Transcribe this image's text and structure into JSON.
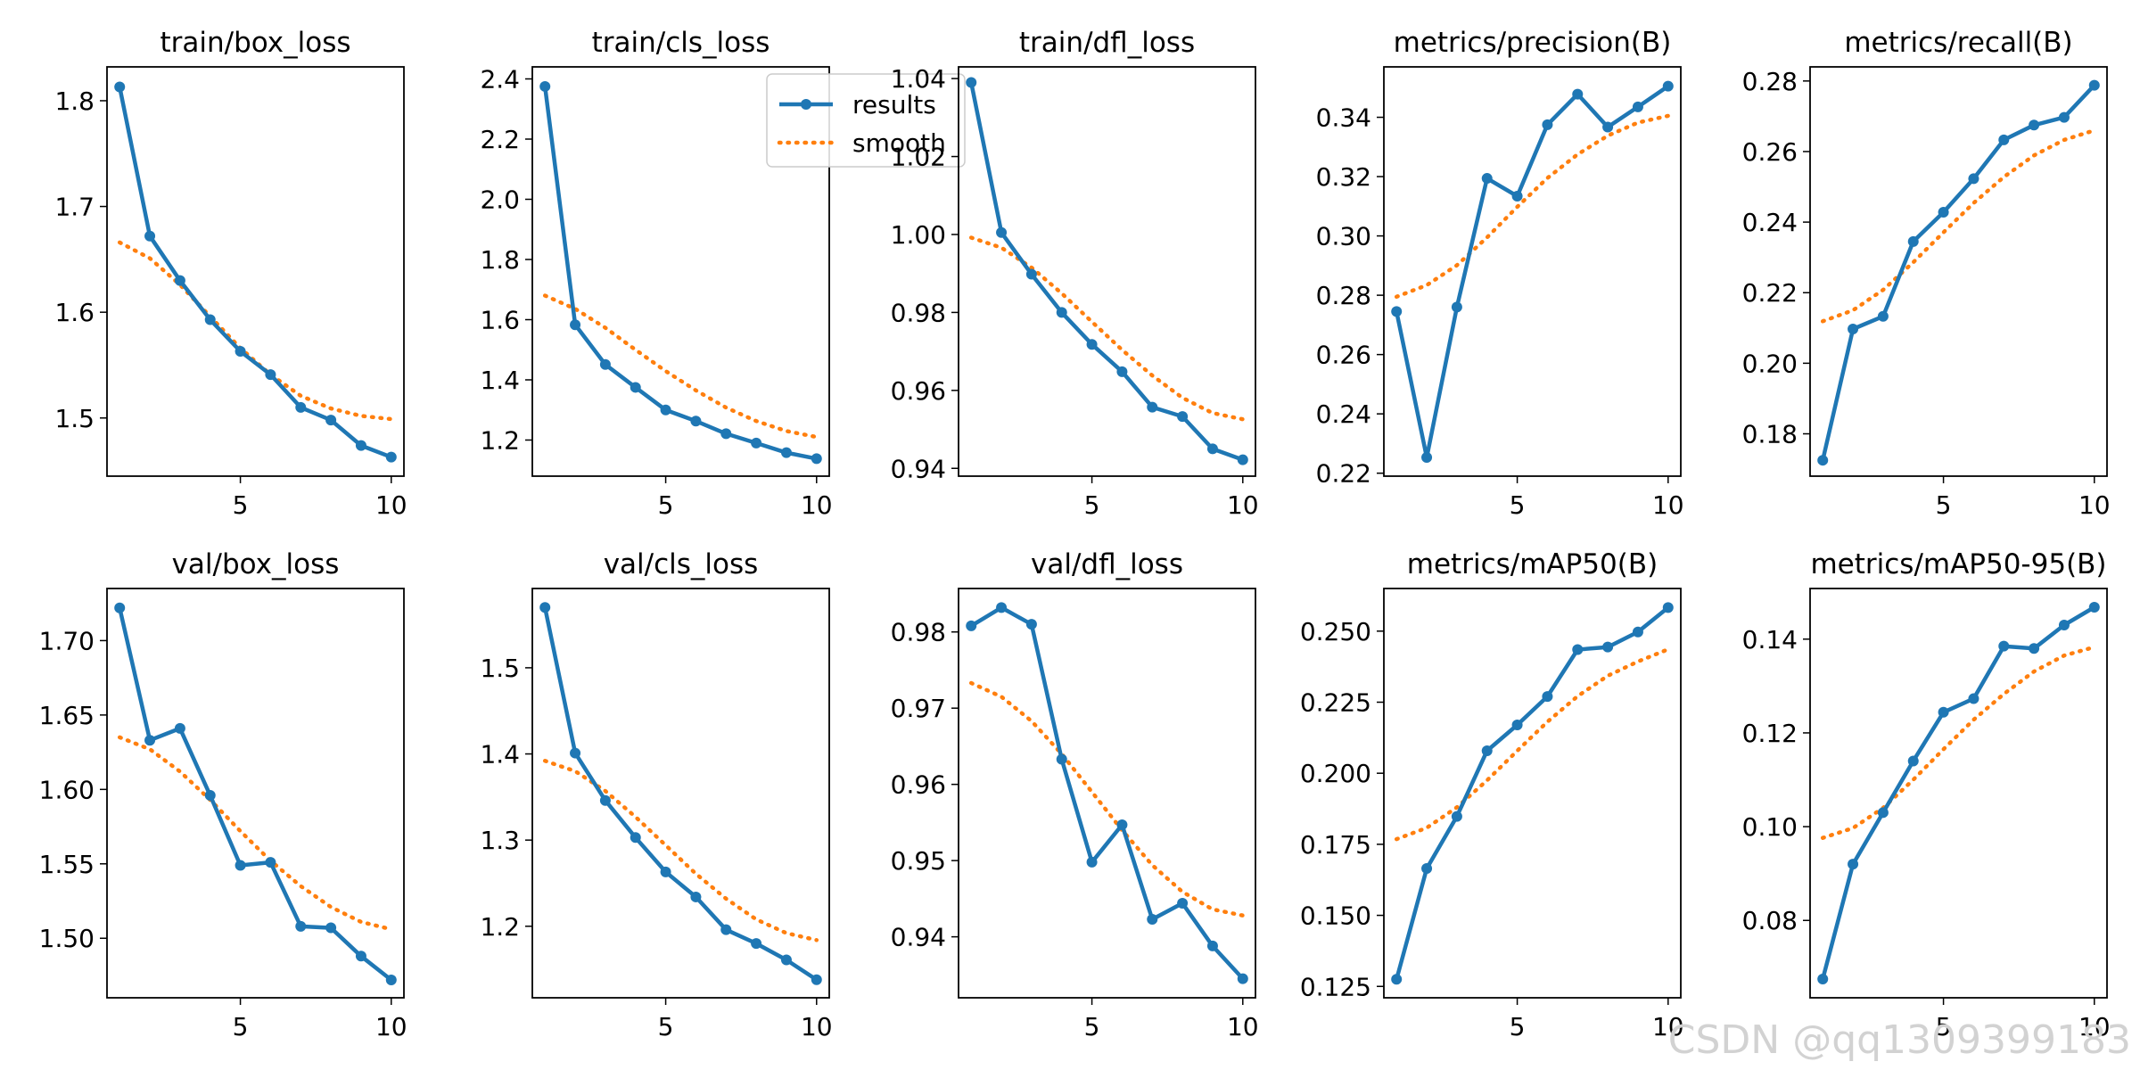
{
  "figure": {
    "legend": {
      "results_label": "results",
      "smooth_label": "smooth",
      "placement": "upper-right of train/cls_loss panel"
    },
    "colors": {
      "results": "#1f77b4",
      "smooth": "#ff7f0e",
      "axes": "#000000",
      "background": "#ffffff"
    }
  },
  "watermark": "CSDN @qq1309399183",
  "chart_data": [
    {
      "type": "line",
      "title": "train/box_loss",
      "x": [
        1,
        2,
        3,
        4,
        5,
        6,
        7,
        8,
        9,
        10
      ],
      "series": [
        {
          "name": "results",
          "values": [
            1.813,
            1.672,
            1.63,
            1.593,
            1.563,
            1.541,
            1.51,
            1.498,
            1.474,
            1.463
          ]
        },
        {
          "name": "smooth",
          "values": [
            1.666,
            1.651,
            1.626,
            1.596,
            1.566,
            1.541,
            1.521,
            1.509,
            1.502,
            1.499
          ]
        }
      ],
      "xlim": [
        0.58,
        10.42
      ],
      "ylim": [
        1.445,
        1.832
      ],
      "xticks": [
        5,
        10
      ],
      "yticks": [
        1.5,
        1.6,
        1.7,
        1.8
      ],
      "xticklabels": [
        "5",
        "10"
      ],
      "yticklabels": [
        "1.5",
        "1.6",
        "1.7",
        "1.8"
      ]
    },
    {
      "type": "line",
      "title": "train/cls_loss",
      "x": [
        1,
        2,
        3,
        4,
        5,
        6,
        7,
        8,
        9,
        10
      ],
      "series": [
        {
          "name": "results",
          "values": [
            2.375,
            1.583,
            1.451,
            1.375,
            1.3,
            1.263,
            1.221,
            1.19,
            1.158,
            1.138
          ]
        },
        {
          "name": "smooth",
          "values": [
            1.68,
            1.636,
            1.573,
            1.5,
            1.429,
            1.365,
            1.308,
            1.263,
            1.23,
            1.21
          ]
        }
      ],
      "xlim": [
        0.58,
        10.42
      ],
      "ylim": [
        1.08,
        2.44
      ],
      "xticks": [
        5,
        10
      ],
      "yticks": [
        1.2,
        1.4,
        1.6,
        1.8,
        2.0,
        2.2,
        2.4
      ],
      "xticklabels": [
        "5",
        "10"
      ],
      "yticklabels": [
        "1.2",
        "1.4",
        "1.6",
        "1.8",
        "2.0",
        "2.2",
        "2.4"
      ],
      "legend": true
    },
    {
      "type": "line",
      "title": "train/dfl_loss",
      "x": [
        1,
        2,
        3,
        4,
        5,
        6,
        7,
        8,
        9,
        10
      ],
      "series": [
        {
          "name": "results",
          "values": [
            1.039,
            1.0005,
            0.9898,
            0.98,
            0.9718,
            0.9648,
            0.9557,
            0.9533,
            0.945,
            0.9422
          ]
        },
        {
          "name": "smooth",
          "values": [
            0.9992,
            0.9966,
            0.9915,
            0.9849,
            0.9776,
            0.9704,
            0.9638,
            0.9581,
            0.9542,
            0.9526
          ]
        }
      ],
      "xlim": [
        0.58,
        10.42
      ],
      "ylim": [
        0.938,
        1.043
      ],
      "xticks": [
        5,
        10
      ],
      "yticks": [
        0.94,
        0.96,
        0.98,
        1.0,
        1.02,
        1.04
      ],
      "xticklabels": [
        "5",
        "10"
      ],
      "yticklabels": [
        "0.94",
        "0.96",
        "0.98",
        "1.00",
        "1.02",
        "1.04"
      ]
    },
    {
      "type": "line",
      "title": "metrics/precision(B)",
      "x": [
        1,
        2,
        3,
        4,
        5,
        6,
        7,
        8,
        9,
        10
      ],
      "series": [
        {
          "name": "results",
          "values": [
            0.2745,
            0.2253,
            0.276,
            0.3194,
            0.3134,
            0.3375,
            0.3478,
            0.3367,
            0.3435,
            0.3505
          ]
        },
        {
          "name": "smooth",
          "values": [
            0.2795,
            0.2834,
            0.2901,
            0.2995,
            0.3098,
            0.3195,
            0.3275,
            0.3338,
            0.3382,
            0.3405
          ]
        }
      ],
      "xlim": [
        0.58,
        10.42
      ],
      "ylim": [
        0.219,
        0.357
      ],
      "xticks": [
        5,
        10
      ],
      "yticks": [
        0.22,
        0.24,
        0.26,
        0.28,
        0.3,
        0.32,
        0.34
      ],
      "xticklabels": [
        "5",
        "10"
      ],
      "yticklabels": [
        "0.22",
        "0.24",
        "0.26",
        "0.28",
        "0.30",
        "0.32",
        "0.34"
      ]
    },
    {
      "type": "line",
      "title": "metrics/recall(B)",
      "x": [
        1,
        2,
        3,
        4,
        5,
        6,
        7,
        8,
        9,
        10
      ],
      "series": [
        {
          "name": "results",
          "values": [
            0.1725,
            0.2097,
            0.2133,
            0.2345,
            0.2428,
            0.2523,
            0.2633,
            0.2675,
            0.2697,
            0.2788
          ]
        },
        {
          "name": "smooth",
          "values": [
            0.2119,
            0.215,
            0.2208,
            0.2286,
            0.2371,
            0.2454,
            0.2528,
            0.2589,
            0.2633,
            0.266
          ]
        }
      ],
      "xlim": [
        0.58,
        10.42
      ],
      "ylim": [
        0.168,
        0.284
      ],
      "xticks": [
        5,
        10
      ],
      "yticks": [
        0.18,
        0.2,
        0.22,
        0.24,
        0.26,
        0.28
      ],
      "xticklabels": [
        "5",
        "10"
      ],
      "yticklabels": [
        "0.18",
        "0.20",
        "0.22",
        "0.24",
        "0.26",
        "0.28"
      ]
    },
    {
      "type": "line",
      "title": "val/box_loss",
      "x": [
        1,
        2,
        3,
        4,
        5,
        6,
        7,
        8,
        9,
        10
      ],
      "series": [
        {
          "name": "results",
          "values": [
            1.722,
            1.633,
            1.641,
            1.596,
            1.549,
            1.551,
            1.508,
            1.507,
            1.488,
            1.472
          ]
        },
        {
          "name": "smooth",
          "values": [
            1.635,
            1.627,
            1.612,
            1.593,
            1.572,
            1.552,
            1.535,
            1.521,
            1.511,
            1.506
          ]
        }
      ],
      "xlim": [
        0.58,
        10.42
      ],
      "ylim": [
        1.46,
        1.735
      ],
      "xticks": [
        5,
        10
      ],
      "yticks": [
        1.5,
        1.55,
        1.6,
        1.65,
        1.7
      ],
      "xticklabels": [
        "5",
        "10"
      ],
      "yticklabels": [
        "1.50",
        "1.55",
        "1.60",
        "1.65",
        "1.70"
      ]
    },
    {
      "type": "line",
      "title": "val/cls_loss",
      "x": [
        1,
        2,
        3,
        4,
        5,
        6,
        7,
        8,
        9,
        10
      ],
      "series": [
        {
          "name": "results",
          "values": [
            1.57,
            1.401,
            1.346,
            1.303,
            1.263,
            1.234,
            1.196,
            1.18,
            1.161,
            1.138
          ]
        },
        {
          "name": "smooth",
          "values": [
            1.392,
            1.38,
            1.357,
            1.327,
            1.294,
            1.261,
            1.232,
            1.208,
            1.192,
            1.184
          ]
        }
      ],
      "xlim": [
        0.58,
        10.42
      ],
      "ylim": [
        1.117,
        1.592
      ],
      "xticks": [
        5,
        10
      ],
      "yticks": [
        1.2,
        1.3,
        1.4,
        1.5
      ],
      "xticklabels": [
        "5",
        "10"
      ],
      "yticklabels": [
        "1.2",
        "1.3",
        "1.4",
        "1.5"
      ]
    },
    {
      "type": "line",
      "title": "val/dfl_loss",
      "x": [
        1,
        2,
        3,
        4,
        5,
        6,
        7,
        8,
        9,
        10
      ],
      "series": [
        {
          "name": "results",
          "values": [
            0.9808,
            0.9832,
            0.981,
            0.9633,
            0.9498,
            0.9547,
            0.9423,
            0.9444,
            0.9388,
            0.9345
          ]
        },
        {
          "name": "smooth",
          "values": [
            0.9733,
            0.9715,
            0.9683,
            0.964,
            0.959,
            0.954,
            0.9494,
            0.9459,
            0.9436,
            0.9428
          ]
        }
      ],
      "xlim": [
        0.58,
        10.42
      ],
      "ylim": [
        0.932,
        0.9857
      ],
      "xticks": [
        5,
        10
      ],
      "yticks": [
        0.94,
        0.95,
        0.96,
        0.97,
        0.98
      ],
      "xticklabels": [
        "5",
        "10"
      ],
      "yticklabels": [
        "0.94",
        "0.95",
        "0.96",
        "0.97",
        "0.98"
      ]
    },
    {
      "type": "line",
      "title": "metrics/mAP50(B)",
      "x": [
        1,
        2,
        3,
        4,
        5,
        6,
        7,
        8,
        9,
        10
      ],
      "series": [
        {
          "name": "results",
          "values": [
            0.1275,
            0.1665,
            0.1848,
            0.2079,
            0.217,
            0.227,
            0.2435,
            0.2444,
            0.2497,
            0.2583
          ]
        },
        {
          "name": "smooth",
          "values": [
            0.1768,
            0.1808,
            0.188,
            0.1975,
            0.2079,
            0.2181,
            0.2271,
            0.2343,
            0.2393,
            0.2436
          ]
        }
      ],
      "xlim": [
        0.58,
        10.42
      ],
      "ylim": [
        0.121,
        0.265
      ],
      "xticks": [
        5,
        10
      ],
      "yticks": [
        0.125,
        0.15,
        0.175,
        0.2,
        0.225,
        0.25
      ],
      "xticklabels": [
        "5",
        "10"
      ],
      "yticklabels": [
        "0.125",
        "0.150",
        "0.175",
        "0.200",
        "0.225",
        "0.250"
      ]
    },
    {
      "type": "line",
      "title": "metrics/mAP50-95(B)",
      "x": [
        1,
        2,
        3,
        4,
        5,
        6,
        7,
        8,
        9,
        10
      ],
      "series": [
        {
          "name": "results",
          "values": [
            0.0675,
            0.092,
            0.103,
            0.114,
            0.1244,
            0.1273,
            0.1385,
            0.138,
            0.143,
            0.1468
          ]
        },
        {
          "name": "smooth",
          "values": [
            0.0976,
            0.0997,
            0.104,
            0.11,
            0.1165,
            0.1228,
            0.1283,
            0.1331,
            0.1365,
            0.1383
          ]
        }
      ],
      "xlim": [
        0.58,
        10.42
      ],
      "ylim": [
        0.0635,
        0.1508
      ],
      "xticks": [
        5,
        10
      ],
      "yticks": [
        0.08,
        0.1,
        0.12,
        0.14
      ],
      "xticklabels": [
        "5",
        "10"
      ],
      "yticklabels": [
        "0.08",
        "0.10",
        "0.12",
        "0.14"
      ]
    }
  ]
}
